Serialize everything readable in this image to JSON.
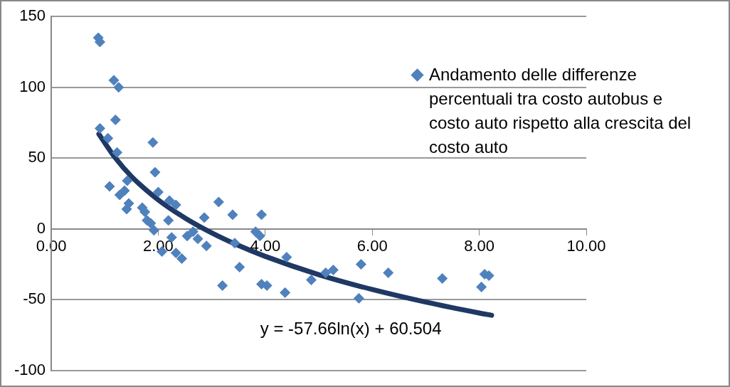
{
  "chart_data": {
    "type": "scatter",
    "series": [
      {
        "name": "Andamento delle differenze percentuali tra costo autobus e costo auto rispetto alla crescita del costo auto",
        "color": "#4f81bd",
        "marker": "diamond",
        "x": [
          0.88,
          0.91,
          1.17,
          1.26,
          1.2,
          0.91,
          1.06,
          1.23,
          1.9,
          1.94,
          1.09,
          1.42,
          1.28,
          1.37,
          1.45,
          1.41,
          1.7,
          1.75,
          1.79,
          1.86,
          1.92,
          2.0,
          2.21,
          2.33,
          2.19,
          2.25,
          2.07,
          2.44,
          2.33,
          2.54,
          2.65,
          2.74,
          2.86,
          2.9,
          3.13,
          3.39,
          3.43,
          3.52,
          3.2,
          3.82,
          3.9,
          3.93,
          3.93,
          4.03,
          4.4,
          4.37,
          4.86,
          5.13,
          5.27,
          5.79,
          5.75,
          6.3,
          7.31,
          8.1,
          8.04,
          8.18
        ],
        "values": [
          135,
          132,
          105,
          100,
          77,
          71,
          64,
          54,
          61,
          40,
          30,
          34,
          24,
          27,
          18,
          14,
          15,
          12,
          6,
          4,
          -1,
          26,
          20,
          17,
          6,
          -6,
          -16,
          -21,
          -17,
          -5,
          -2,
          -7,
          8,
          -12,
          19,
          10,
          -10,
          -27,
          -40,
          -2,
          -5,
          10,
          -39,
          -40,
          -20,
          -45,
          -36,
          -31,
          -29,
          -25,
          -49,
          -31,
          -35,
          -32,
          -41,
          -33
        ]
      },
      {
        "type": "line",
        "color": "#1f3864",
        "marker": "none",
        "x": [
          0.89,
          1.2,
          1.5,
          2,
          2.5,
          3,
          3.5,
          4,
          5,
          6,
          7,
          8,
          8.23
        ],
        "values": [
          67,
          50,
          37,
          20.5,
          7.7,
          -2.8,
          -11.7,
          -19.4,
          -32.3,
          -42.8,
          -51.7,
          -59.4,
          -61
        ]
      }
    ],
    "xlim": [
      0,
      10
    ],
    "xticks": [
      {
        "value": 0,
        "label": "0.00"
      },
      {
        "value": 2,
        "label": "2.00"
      },
      {
        "value": 4,
        "label": "4.00"
      },
      {
        "value": 6,
        "label": "6.00"
      },
      {
        "value": 8,
        "label": "8.00"
      },
      {
        "value": 10,
        "label": "10.00"
      }
    ],
    "ylim": [
      -100,
      150
    ],
    "yticks": [
      -100,
      -50,
      0,
      50,
      100,
      150
    ],
    "grid": "y",
    "legend": "top right",
    "annotations": [
      "y = -57.66ln(x) + 60.504"
    ]
  }
}
